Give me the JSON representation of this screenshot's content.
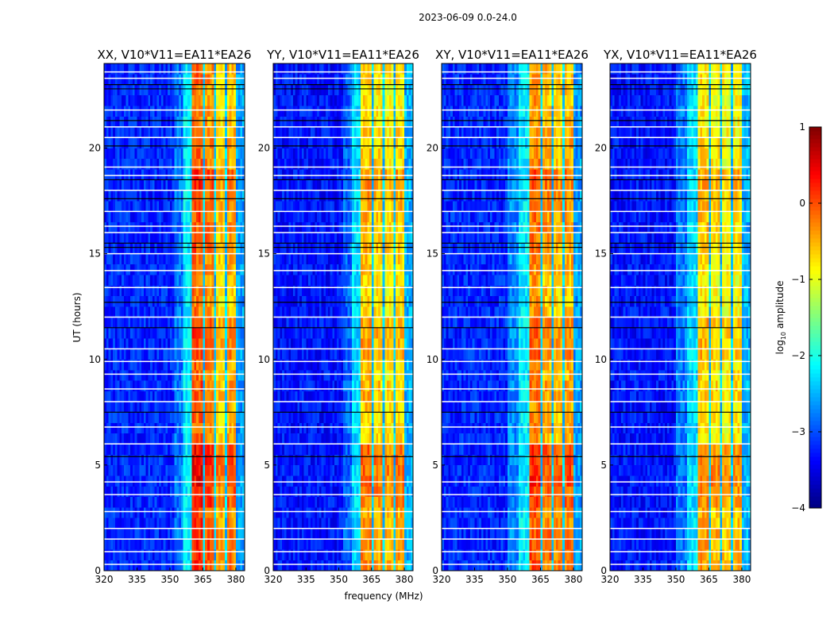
{
  "chart_data": {
    "type": "heatmap",
    "title": "2023-06-09 0.0-24.0",
    "xlabel": "frequency (MHz)",
    "ylabel": "UT (hours)",
    "xlim": [
      320,
      384
    ],
    "ylim": [
      0,
      24
    ],
    "xticks": [
      "320",
      "335",
      "350",
      "365",
      "380"
    ],
    "yticks": [
      "0",
      "5",
      "10",
      "15",
      "20"
    ],
    "xtick_values": [
      320,
      335,
      350,
      365,
      380
    ],
    "ytick_values": [
      0,
      5,
      10,
      15,
      20
    ],
    "colorbar": {
      "label_prefix": "log",
      "label_sub": "10",
      "label_suffix": " amplitude",
      "range": [
        -4,
        1
      ],
      "ticks": [
        "1",
        "0",
        "−1",
        "−2",
        "−3",
        "−4"
      ],
      "tick_values": [
        1,
        0,
        -1,
        -2,
        -3,
        -4
      ],
      "colormap": "jet"
    },
    "freq_bin_mhz": 1,
    "time_bin_hours": 0.5,
    "hour_offsets": [
      0.4,
      0.4,
      0.3,
      0.5,
      0.6,
      0.6,
      0.1,
      0.1,
      0.2,
      0.1,
      0.3,
      0.3,
      0.0,
      0.0,
      0.1,
      0.2,
      0.2,
      0.3,
      0.4,
      0.1,
      0.1,
      0.0,
      0.0,
      0.1
    ],
    "flagged_rows_white": [
      0.3,
      0.9,
      1.5,
      2.0,
      2.8,
      3.6,
      4.2,
      6.0,
      6.8,
      8.0,
      8.6,
      9.3,
      9.9,
      10.5,
      12.0,
      13.4,
      14.2,
      15.0,
      16.0,
      16.3,
      17.0,
      18.0,
      18.7,
      19.1,
      20.5,
      21.0,
      21.8,
      23.3,
      23.6
    ],
    "flagged_rows_black": [
      5.4,
      7.5,
      11.5,
      12.7,
      15.3,
      15.5,
      17.6,
      18.5,
      20.1,
      21.3,
      22.8,
      23.0
    ],
    "panels": [
      {
        "title": "XX, V10*V11=EA11*EA26",
        "profile": [
          [
            320,
            352,
            -3.2
          ],
          [
            352,
            356,
            -2.8
          ],
          [
            356,
            360,
            -2.2
          ],
          [
            360,
            365,
            -0.2
          ],
          [
            365,
            366,
            -2.4
          ],
          [
            366,
            370,
            -0.4
          ],
          [
            370,
            371,
            -2.4
          ],
          [
            371,
            375,
            -0.8
          ],
          [
            375,
            376,
            -2.4
          ],
          [
            376,
            380,
            -0.6
          ],
          [
            380,
            384,
            -2.6
          ]
        ]
      },
      {
        "title": "YY, V10*V11=EA11*EA26",
        "profile": [
          [
            320,
            352,
            -3.3
          ],
          [
            352,
            356,
            -2.9
          ],
          [
            356,
            360,
            -2.3
          ],
          [
            360,
            365,
            -0.7
          ],
          [
            365,
            366,
            -2.4
          ],
          [
            366,
            370,
            -0.8
          ],
          [
            370,
            371,
            -2.4
          ],
          [
            371,
            375,
            -0.9
          ],
          [
            375,
            376,
            -2.4
          ],
          [
            376,
            380,
            -0.8
          ],
          [
            380,
            384,
            -2.5
          ]
        ]
      },
      {
        "title": "XY, V10*V11=EA11*EA26",
        "profile": [
          [
            320,
            350,
            -3.2
          ],
          [
            350,
            355,
            -2.7
          ],
          [
            355,
            360,
            -2.2
          ],
          [
            360,
            365,
            -0.4
          ],
          [
            365,
            366,
            -2.4
          ],
          [
            366,
            370,
            -0.6
          ],
          [
            370,
            371,
            -2.4
          ],
          [
            371,
            375,
            -0.7
          ],
          [
            375,
            376,
            -2.4
          ],
          [
            376,
            380,
            -0.6
          ],
          [
            380,
            384,
            -2.6
          ]
        ]
      },
      {
        "title": "YX, V10*V11=EA11*EA26",
        "profile": [
          [
            320,
            350,
            -3.3
          ],
          [
            350,
            355,
            -2.8
          ],
          [
            355,
            360,
            -2.3
          ],
          [
            360,
            365,
            -0.8
          ],
          [
            365,
            366,
            -2.4
          ],
          [
            366,
            370,
            -0.9
          ],
          [
            370,
            371,
            -2.4
          ],
          [
            371,
            375,
            -1.0
          ],
          [
            375,
            376,
            -2.4
          ],
          [
            376,
            380,
            -0.9
          ],
          [
            380,
            384,
            -2.5
          ]
        ]
      }
    ]
  }
}
